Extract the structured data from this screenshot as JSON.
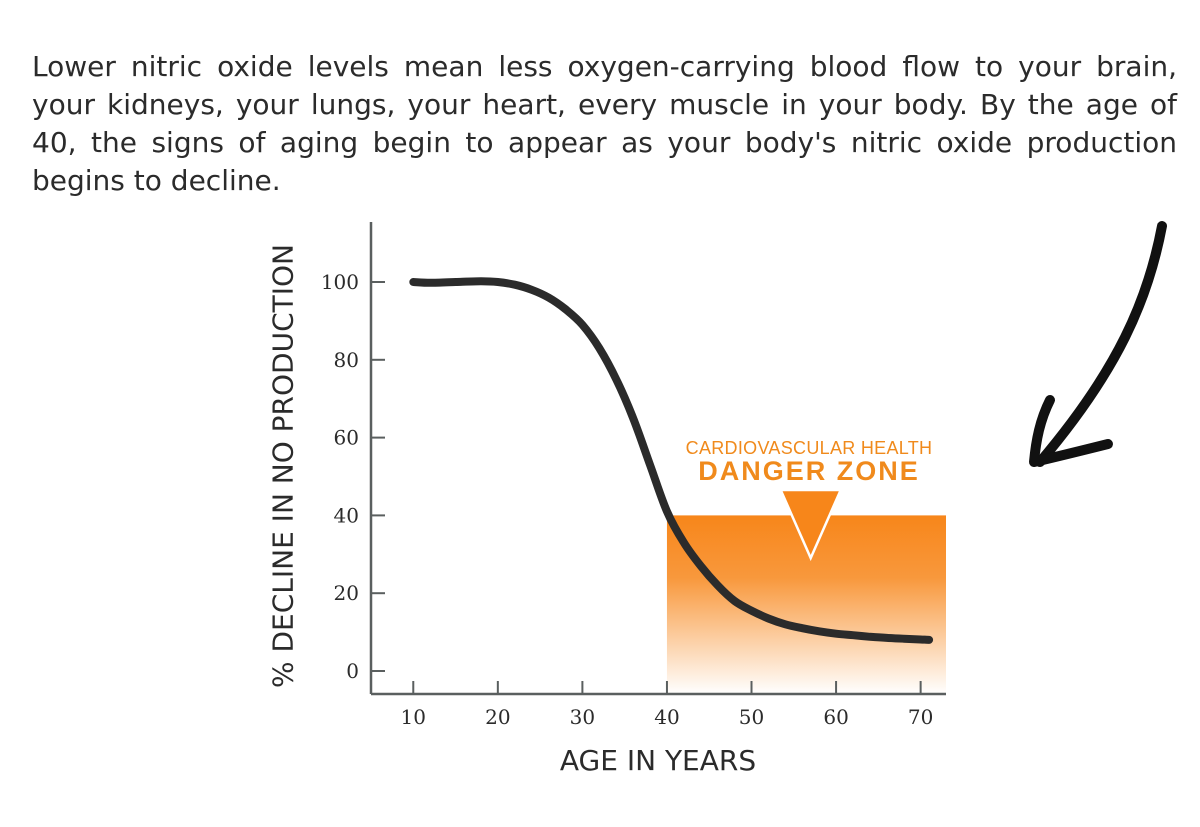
{
  "intro_text": "Lower nitric oxide levels mean less oxygen-carrying blood flow to your brain, your kidneys, your lungs, your heart, every muscle in your body.  By the age of 40, the signs of aging begin to appear as your body's nitric oxide production begins to decline.",
  "colors": {
    "curve": "#2b2b2b",
    "axis": "#5a5f5f",
    "danger_zone": "#f7861a",
    "text": "#2b2b2b"
  },
  "icons": {
    "pointer": "hand-drawn-arrow-icon"
  },
  "chart_data": {
    "type": "line",
    "xlabel": "AGE IN YEARS",
    "ylabel": "% DECLINE IN NO PRODUCTION",
    "xlim": [
      5,
      73
    ],
    "ylim": [
      0,
      115
    ],
    "x_ticks": [
      10,
      20,
      30,
      40,
      50,
      60,
      70
    ],
    "y_ticks": [
      0,
      20,
      40,
      60,
      80,
      100
    ],
    "grid": false,
    "series": [
      {
        "x": [
          10,
          12,
          15,
          18,
          20,
          22,
          24,
          26,
          28,
          30,
          32,
          34,
          36,
          38,
          40,
          42,
          44,
          46,
          48,
          50,
          52,
          54,
          56,
          58,
          60,
          62,
          64,
          66,
          68,
          70,
          71
        ],
        "y": [
          100,
          99.8,
          100,
          100.2,
          100,
          99.3,
          98,
          96,
          93,
          89,
          83,
          75,
          65,
          53,
          41,
          33,
          27,
          22,
          18,
          15.5,
          13.5,
          12,
          11,
          10.2,
          9.6,
          9.2,
          8.8,
          8.5,
          8.3,
          8.1,
          8
        ]
      }
    ],
    "annotations": [
      {
        "type": "shaded-region",
        "x_range": [
          40,
          73
        ],
        "y_range": [
          0,
          40
        ],
        "label_line1": "CARDIOVASCULAR HEALTH",
        "label_line2": "DANGER ZONE",
        "pointer_x": 57
      }
    ]
  }
}
